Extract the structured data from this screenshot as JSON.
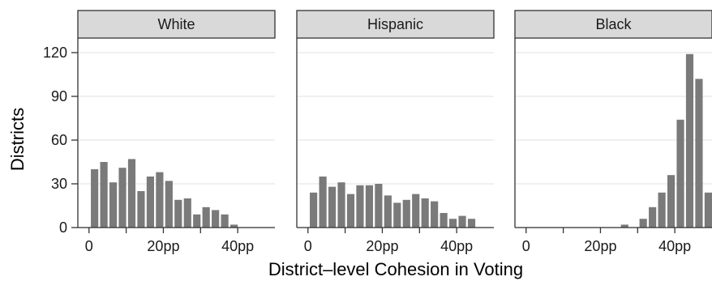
{
  "chart_data": {
    "type": "bar",
    "xlabel": "District–level Cohesion in Voting",
    "ylabel": "Districts",
    "ylim": [
      0,
      130
    ],
    "yticks": [
      0,
      30,
      60,
      90,
      120
    ],
    "ytick_labels": [
      "0",
      "30",
      "60",
      "90",
      "120"
    ],
    "xlim": [
      -3,
      50
    ],
    "xticks": [
      0,
      20,
      40
    ],
    "xtick_labels": [
      "0",
      "20pp",
      "40pp"
    ],
    "grid": true,
    "colors": {
      "bar": "#7a7a7a",
      "strip_bg": "#d9d9d9",
      "grid": "#ebebeb",
      "frame": "#333333"
    },
    "panels": [
      {
        "name": "White",
        "x": [
          1.5,
          4,
          6.5,
          9,
          11.5,
          14,
          16.5,
          19,
          21.5,
          24,
          26.5,
          29,
          31.5,
          34,
          36.5,
          39,
          41.5,
          44,
          46.5
        ],
        "values": [
          40,
          45,
          31,
          41,
          47,
          25,
          35,
          38,
          32,
          19,
          20,
          9,
          14,
          12,
          9,
          2,
          0,
          0,
          0
        ]
      },
      {
        "name": "Hispanic",
        "x": [
          1.5,
          4,
          6.5,
          9,
          11.5,
          14,
          16.5,
          19,
          21.5,
          24,
          26.5,
          29,
          31.5,
          34,
          36.5,
          39,
          41.5,
          44,
          46.5
        ],
        "values": [
          24,
          35,
          28,
          31,
          23,
          29,
          29,
          30,
          22,
          17,
          19,
          23,
          20,
          18,
          10,
          6,
          8,
          6,
          0
        ]
      },
      {
        "name": "Black",
        "x": [
          1.5,
          4,
          6.5,
          9,
          11.5,
          14,
          16.5,
          19,
          21.5,
          24,
          26.5,
          29,
          31.5,
          34,
          36.5,
          39,
          41.5,
          44,
          46.5,
          49
        ],
        "values": [
          0,
          0,
          0,
          0,
          0,
          0,
          0,
          0,
          0,
          0,
          2,
          0,
          6,
          14,
          24,
          36,
          74,
          119,
          102,
          24
        ]
      }
    ]
  }
}
